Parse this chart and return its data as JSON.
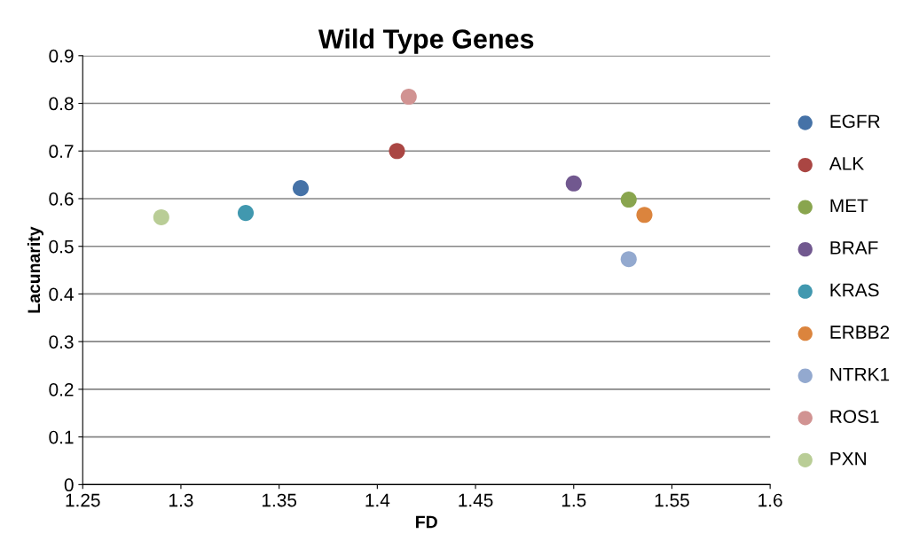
{
  "chart_data": {
    "type": "scatter",
    "title": "Wild Type Genes",
    "xlabel": "FD",
    "ylabel": "Lacunarity",
    "xlim": [
      1.25,
      1.6
    ],
    "xticks": [
      1.25,
      1.3,
      1.35,
      1.4,
      1.45,
      1.5,
      1.55,
      1.6
    ],
    "ylim": [
      0,
      0.9
    ],
    "yticks": [
      0,
      0.1,
      0.2,
      0.3,
      0.4,
      0.5,
      0.6,
      0.7,
      0.8,
      0.9
    ],
    "grid": "y",
    "legend": "right",
    "marker": "circle",
    "series": [
      {
        "name": "EGFR",
        "color": "#4572a7",
        "x": [
          1.361
        ],
        "values": [
          0.622
        ]
      },
      {
        "name": "ALK",
        "color": "#aa4643",
        "x": [
          1.41
        ],
        "values": [
          0.7
        ]
      },
      {
        "name": "MET",
        "color": "#89a54e",
        "x": [
          1.528
        ],
        "values": [
          0.598
        ]
      },
      {
        "name": "BRAF",
        "color": "#71588f",
        "x": [
          1.5
        ],
        "values": [
          0.632
        ]
      },
      {
        "name": "KRAS",
        "color": "#4198af",
        "x": [
          1.333
        ],
        "values": [
          0.57
        ]
      },
      {
        "name": "ERBB2",
        "color": "#db843d",
        "x": [
          1.536
        ],
        "values": [
          0.566
        ]
      },
      {
        "name": "NTRK1",
        "color": "#93a9cf",
        "x": [
          1.528
        ],
        "values": [
          0.473
        ]
      },
      {
        "name": "ROS1",
        "color": "#d19392",
        "x": [
          1.416
        ],
        "values": [
          0.814
        ]
      },
      {
        "name": "PXN",
        "color": "#b9cd96",
        "x": [
          1.29
        ],
        "values": [
          0.561
        ]
      }
    ]
  }
}
